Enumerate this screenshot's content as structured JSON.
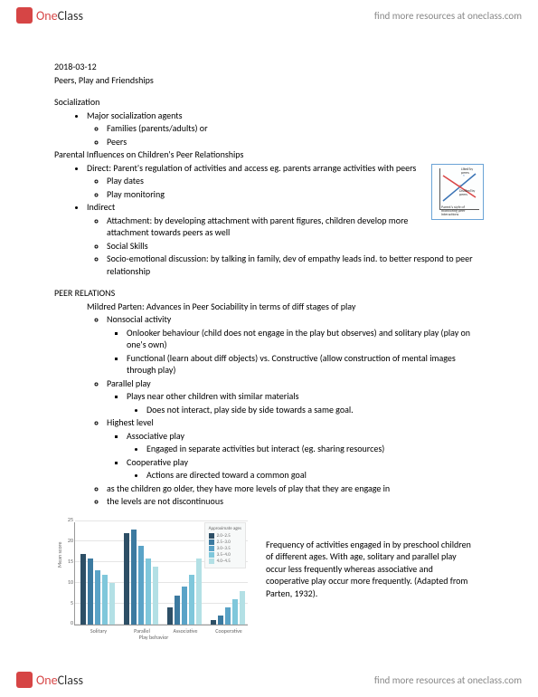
{
  "header": {
    "logo_brand": "One",
    "logo_sub": "Class",
    "top_link": "find more resources at oneclass.com"
  },
  "doc": {
    "date": "2018-03-12",
    "title": "Peers, Play and Friendships",
    "h_socialization": "Socialization",
    "soc_b1": "Major socialization agents",
    "soc_b1a": "Families (parents/adults) or",
    "soc_b1b": "Peers",
    "h_parental": "Parental Influences on Children's Peer Relationships",
    "par_b1": "Direct: Parent's regulation of activities and access  eg. parents arrange activities with peers",
    "par_b1a": "Play dates",
    "par_b1b": "Play monitoring",
    "par_b2": "Indirect",
    "par_b2a": "Attachment: by developing attachment with parent figures, children develop more attachment towards peers as well",
    "par_b2b": "Social Skills",
    "par_b2c": "Socio-emotional discussion: by talking in family, dev of empathy leads ind. to better respond to peer relationship",
    "h_peer": "PEER RELATIONS",
    "peer_intro": "Mildred Parten:  Advances in Peer Sociability in terms of diff stages of play",
    "p1": "Nonsocial activity",
    "p1a": "Onlooker behaviour (child does not engage in the play but observes) and solitary play (play on one's own)",
    "p1b": "Functional (learn about diff objects) vs. Constructive (allow construction of mental images through play)",
    "p2": "Parallel play",
    "p2a": "Plays near other children with similar materials",
    "p2a1": "Does not interact, play side by side towards a same goal.",
    "p3": "Highest level",
    "p3a": "Associative play",
    "p3a1": "Engaged in separate activities but interact (eg. sharing resources)",
    "p3b": "Cooperative play",
    "p3b1": "Actions are directed toward a common goal",
    "p4": "as the children go older, they have more levels of play that they are engage in",
    "p5": "the levels are not discontinuous",
    "mini_chart": {
      "label_top": "Liked by peers",
      "label_bot": "Disliked by peers",
      "label_x": "Parent's style of monitoring peer interactions",
      "line1_color": "#3b74b5",
      "line2_color": "#d94545"
    },
    "bar_chart": {
      "type": "bar",
      "ylabel": "Mean score",
      "xlabel": "Play behavior",
      "categories": [
        "Solitary",
        "Parallel",
        "Associative",
        "Cooperative"
      ],
      "ylim": [
        0,
        25
      ],
      "ytick_step": 5,
      "background": "#ffffff",
      "grid_color": "#e5e5e5",
      "series": [
        {
          "name": "2.0–2.5",
          "color": "#2d4f66"
        },
        {
          "name": "2.5–3.0",
          "color": "#3c7aa0"
        },
        {
          "name": "3.0–3.5",
          "color": "#5aa3c7"
        },
        {
          "name": "3.5–4.0",
          "color": "#7fc7db"
        },
        {
          "name": "4.0–4.5",
          "color": "#b3e0e5"
        }
      ],
      "legend_title": "Approximate ages",
      "data": {
        "Solitary": [
          17,
          16,
          13,
          12,
          10
        ],
        "Parallel": [
          22,
          23,
          19,
          16,
          14
        ],
        "Associative": [
          4,
          7,
          9,
          12,
          16
        ],
        "Cooperative": [
          1,
          2,
          4,
          6,
          8
        ]
      }
    },
    "caption": "Frequency of activities engaged in by preschool children of different ages. With age, solitary and parallel play occur less frequently whereas associative and cooperative play occur more frequently. (Adapted from Parten, 1932)."
  },
  "footer": {
    "link": "find more resources at oneclass.com"
  }
}
